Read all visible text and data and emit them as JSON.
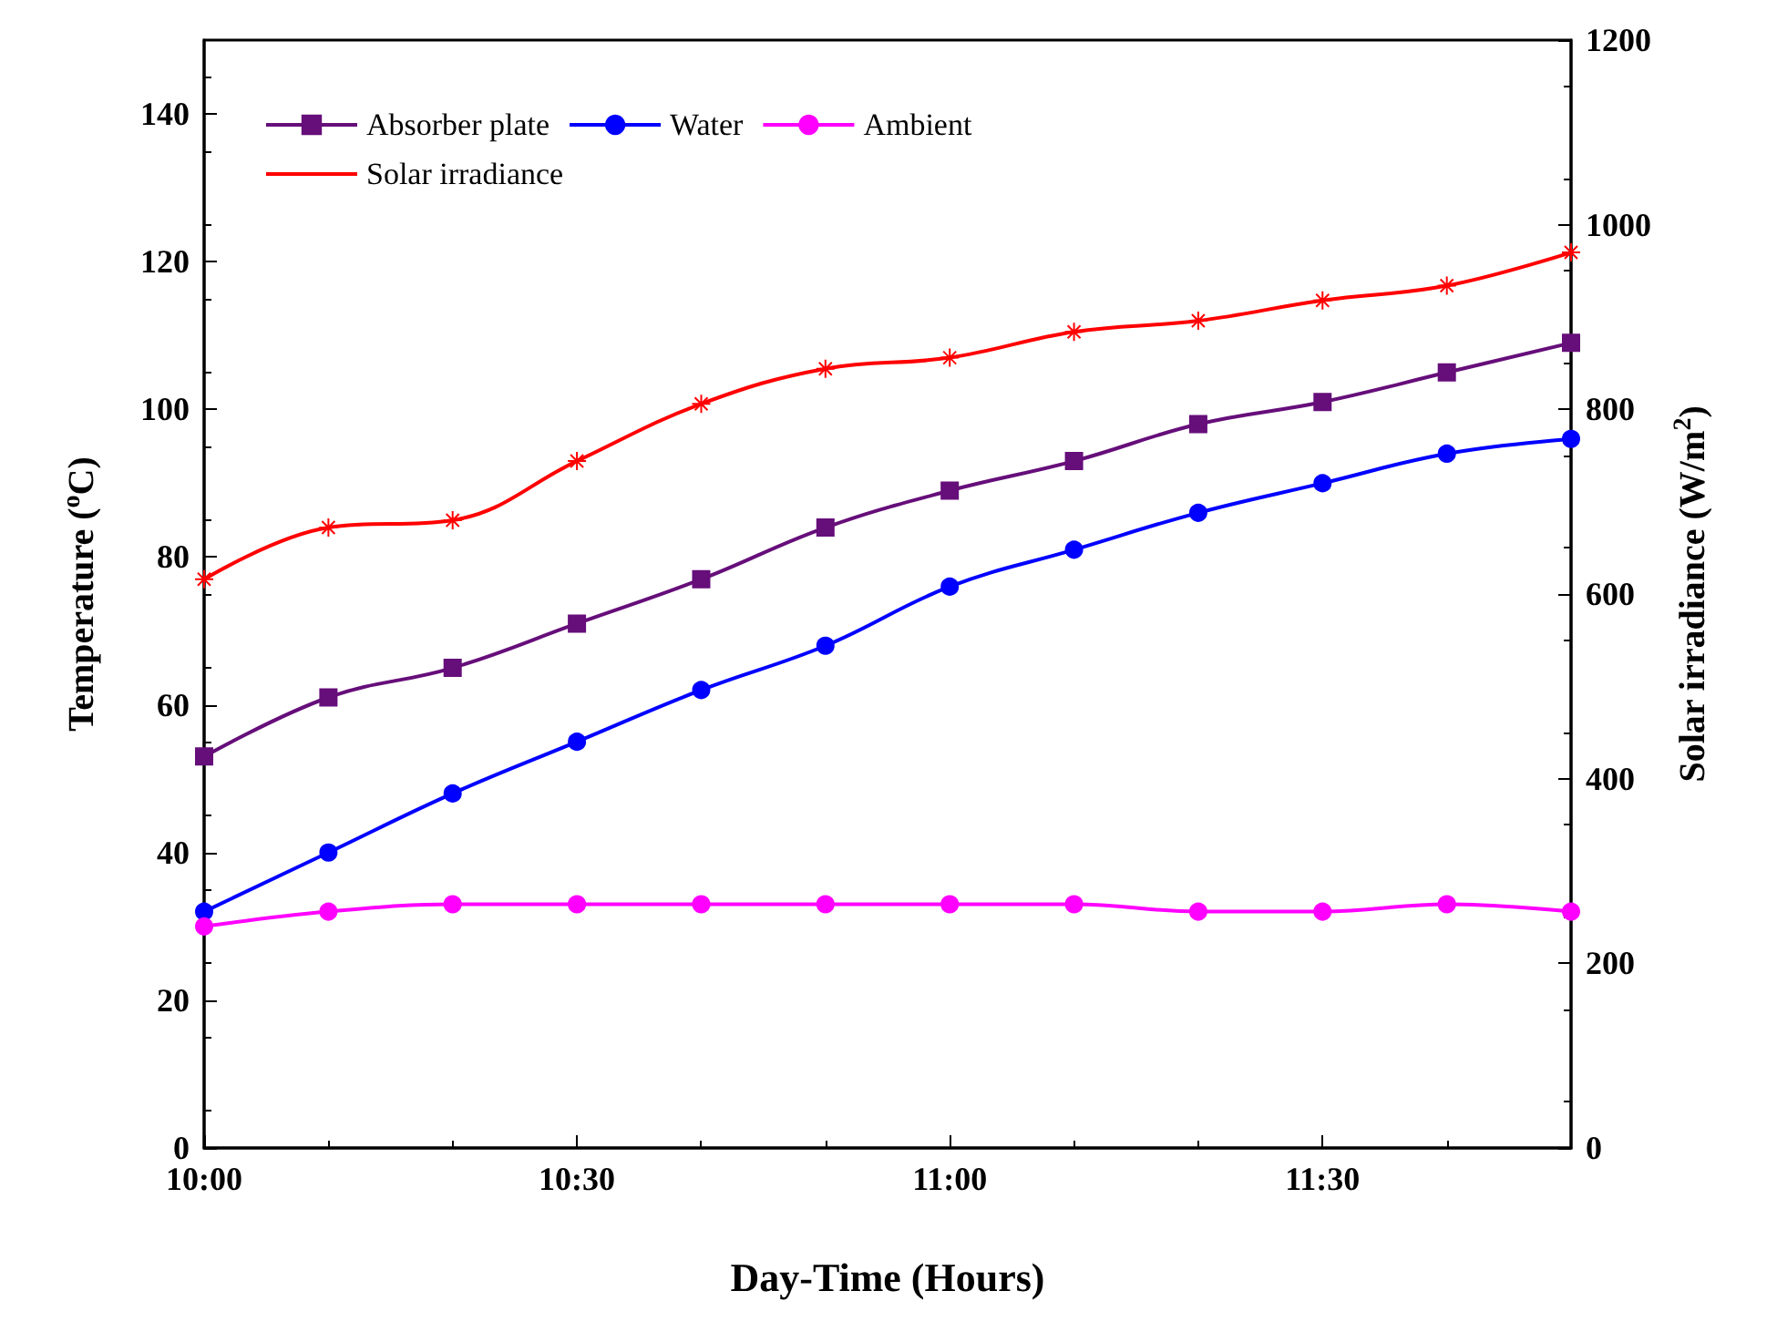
{
  "chart_data": {
    "type": "line",
    "xlabel": "Day-Time (Hours)",
    "ylabel": "Temperature ($^{o}$C)",
    "y2label": "Solar irradiance (W/m$^{2}$)",
    "x": [
      10,
      10.1667,
      10.3333,
      10.5,
      10.6667,
      10.8333,
      11,
      11.1667,
      11.3333,
      11.5,
      11.6667,
      11.8333
    ],
    "series": [
      {
        "name": "Absorber plate",
        "color": "#660e7a",
        "marker": "square",
        "values": [
          53,
          61,
          65,
          71,
          77,
          84,
          89,
          93,
          98,
          101,
          105,
          109
        ]
      },
      {
        "name": "Water",
        "color": "#0000ff",
        "marker": "circle",
        "values": [
          32,
          40,
          48,
          55,
          62,
          68,
          76,
          81,
          86,
          90,
          94,
          96
        ]
      },
      {
        "name": "Ambient",
        "color": "#ff00ff",
        "marker": "circle",
        "values": [
          30,
          32,
          33,
          33,
          33,
          33,
          33,
          33,
          32,
          32,
          33,
          32
        ]
      },
      {
        "name": "Solar irradiance",
        "color": "#ff0000",
        "marker": "cross",
        "axis": "y2",
        "values": [
          616,
          672,
          680,
          744,
          806,
          844,
          856,
          884,
          896,
          918,
          934,
          970
        ]
      }
    ],
    "xlim": [
      10,
      11.8333
    ],
    "xticks": [
      {
        "value": 10,
        "label": "10:00"
      },
      {
        "value": 10.5,
        "label": "10:30"
      },
      {
        "value": 11,
        "label": "11:00"
      },
      {
        "value": 11.5,
        "label": "11:30"
      }
    ],
    "ylim": [
      0,
      150
    ],
    "yticks": [
      0,
      20,
      40,
      60,
      80,
      100,
      120,
      140
    ],
    "y2lim": [
      0,
      1200
    ],
    "y2ticks": [
      0,
      200,
      400,
      600,
      800,
      1000,
      1200
    ],
    "legend": "top left",
    "grid": false,
    "line_style": "solid"
  }
}
